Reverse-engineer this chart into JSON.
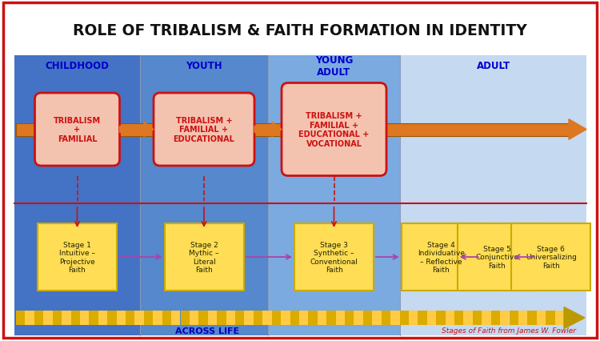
{
  "title": "ROLE OF TRIBALISM & FAITH FORMATION IN IDENTITY",
  "title_fontsize": 13.5,
  "title_color": "#111111",
  "border_color": "#cc1111",
  "phase_labels": [
    "CHILDHOOD",
    "YOUTH",
    "YOUNG\nADULT",
    "ADULT"
  ],
  "phase_label_color": "#0000cc",
  "phase_label_fontsize": 8.5,
  "bg_colors": [
    "#4472c4",
    "#5588cc",
    "#7aaae0",
    "#c5d9f1"
  ],
  "bubble_texts": [
    "TRIBALISM\n+\nFAMILIAL",
    "TRIBALISM +\nFAMILIAL +\nEDUCATIONAL",
    "TRIBALISM +\nFAMILIAL +\nEDUCATIONAL +\nVOCATIONAL"
  ],
  "bubble_color": "#f4c3b0",
  "bubble_border": "#cc1111",
  "arrow_color": "#cc6600",
  "arrow_body_color": "#dd7722",
  "divider_color": "#cc1111",
  "stage_texts": [
    "Stage 1\nIntuitive –\nProjective\nFaith",
    "Stage 2\nMythic –\nLiteral\nFaith",
    "Stage 3\nSynthetic –\nConventional\nFaith",
    "Stage 4\nIndividuative\n– Reflective\nFaith",
    "Stage 5\nConjunctive\nFaith",
    "Stage 6\nUniversalizing\nFaith"
  ],
  "stage_box_color": "#ffdd55",
  "stage_box_border": "#ccaa00",
  "stage_arrow_color": "#aa44aa",
  "bottom_bar_color1": "#ddaa00",
  "bottom_bar_color2": "#ffcc44",
  "bottom_arrowhead_color": "#bb9900",
  "across_life_text": "ACROSS LIFE",
  "across_life_color": "#0000bb",
  "fowler_text": "Stages of Faith from James W. Fowler",
  "fowler_color": "#cc1111"
}
